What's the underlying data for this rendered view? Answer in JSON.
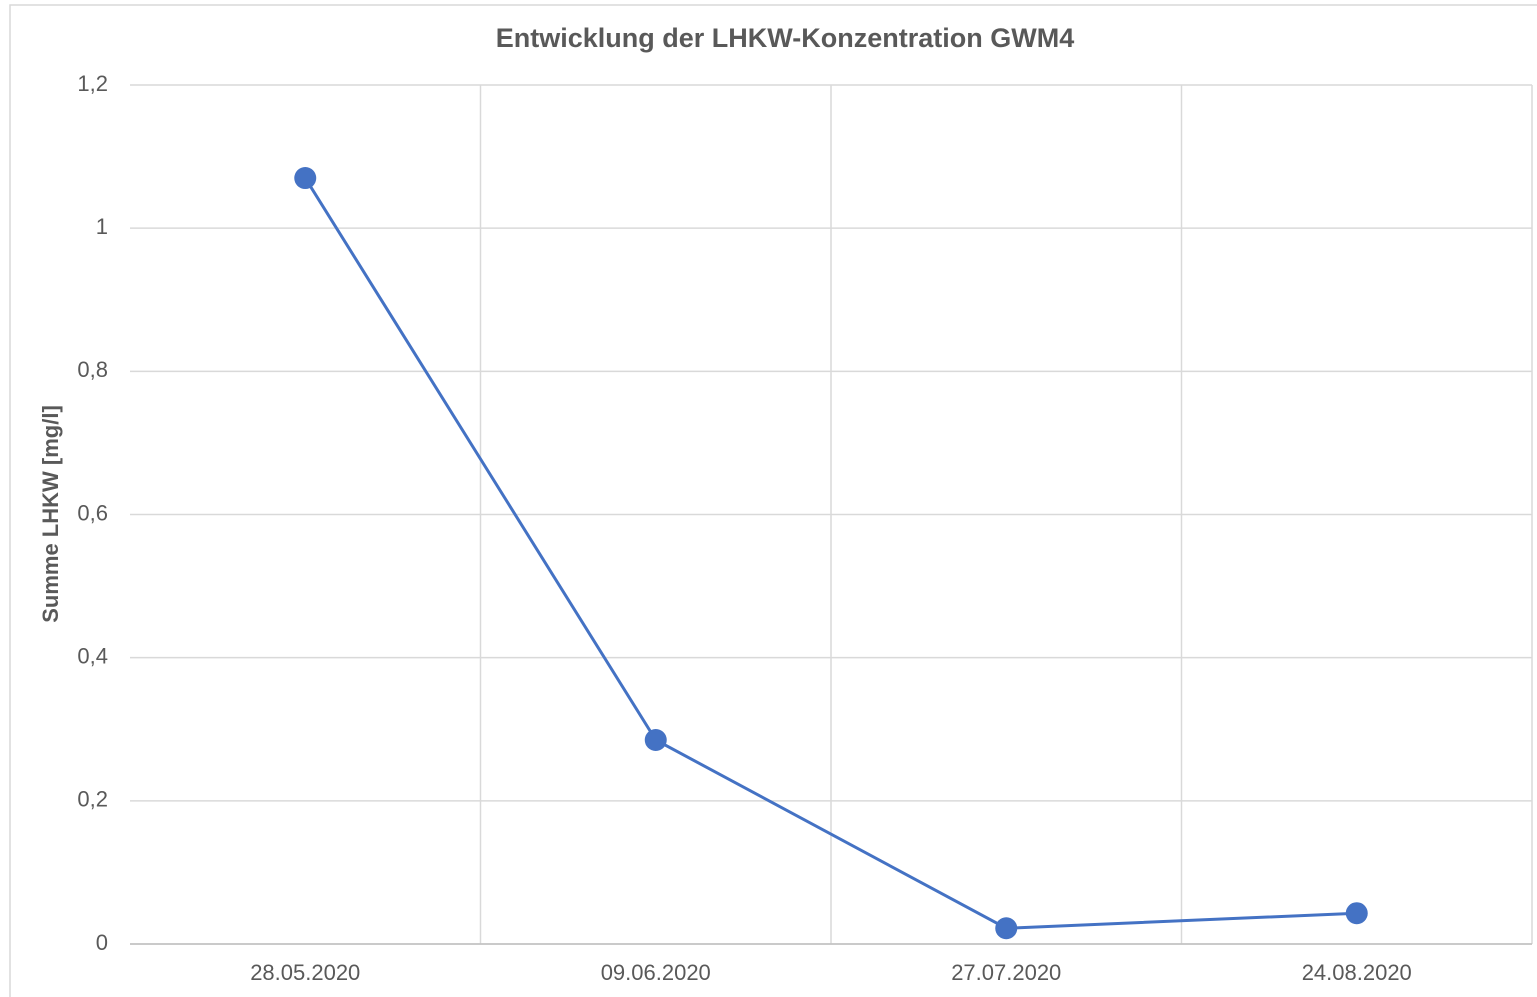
{
  "chart_data": {
    "type": "line",
    "title": "Entwicklung der LHKW-Konzentration GWM4",
    "y_label": "Summe LHKW [mg/l]",
    "categories": [
      "28.05.2020",
      "09.06.2020",
      "27.07.2020",
      "24.08.2020"
    ],
    "series": [
      {
        "name": "GWM4",
        "color": "#4472c4",
        "values": [
          1.07,
          0.285,
          0.022,
          0.043
        ]
      }
    ],
    "ylim": [
      0,
      1.2
    ],
    "yticks": [
      0,
      {
        "value": 0.2,
        "label": "0,2"
      },
      {
        "value": 0.4,
        "label": "0,4"
      },
      {
        "value": 0.6,
        "label": "0,6"
      },
      {
        "value": 0.8,
        "label": "0,8"
      },
      1,
      {
        "value": 1.2,
        "label": "1,2"
      }
    ],
    "grid": true,
    "legend": false
  }
}
